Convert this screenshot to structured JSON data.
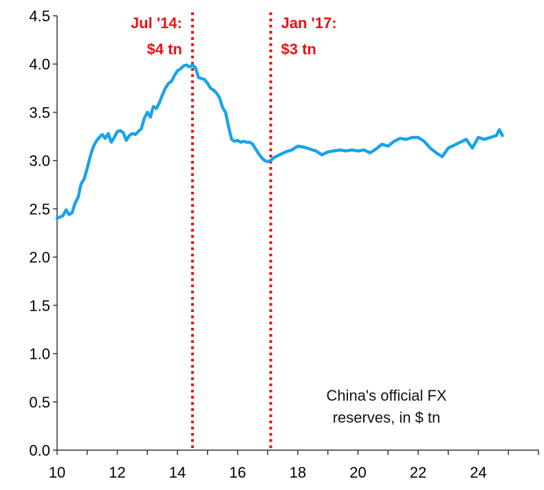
{
  "chart_data": {
    "type": "line",
    "note_lines": [
      "China's official FX",
      "reserves, in $ tn"
    ],
    "x_ticks": [
      "10",
      "12",
      "14",
      "16",
      "18",
      "20",
      "22",
      "24"
    ],
    "y_ticks": [
      "0.0",
      "0.5",
      "1.0",
      "1.5",
      "2.0",
      "2.5",
      "3.0",
      "3.5",
      "4.0",
      "4.5"
    ],
    "xlim": [
      10,
      26
    ],
    "ylim": [
      0,
      4.5
    ],
    "annotations": [
      {
        "x": 14.5,
        "lines": [
          "Jul '14:",
          "$4 tn"
        ]
      },
      {
        "x": 17.1,
        "lines": [
          "Jan '17:",
          "$3 tn"
        ]
      }
    ],
    "series": [
      {
        "color": "#1aa3e8",
        "points": [
          [
            10.0,
            2.4
          ],
          [
            10.2,
            2.43
          ],
          [
            10.3,
            2.49
          ],
          [
            10.4,
            2.44
          ],
          [
            10.5,
            2.46
          ],
          [
            10.6,
            2.56
          ],
          [
            10.7,
            2.62
          ],
          [
            10.8,
            2.76
          ],
          [
            10.9,
            2.81
          ],
          [
            11.0,
            2.92
          ],
          [
            11.1,
            3.04
          ],
          [
            11.2,
            3.14
          ],
          [
            11.3,
            3.2
          ],
          [
            11.4,
            3.24
          ],
          [
            11.5,
            3.27
          ],
          [
            11.6,
            3.23
          ],
          [
            11.7,
            3.28
          ],
          [
            11.8,
            3.19
          ],
          [
            11.9,
            3.24
          ],
          [
            12.0,
            3.3
          ],
          [
            12.1,
            3.31
          ],
          [
            12.2,
            3.29
          ],
          [
            12.3,
            3.21
          ],
          [
            12.4,
            3.26
          ],
          [
            12.5,
            3.28
          ],
          [
            12.6,
            3.27
          ],
          [
            12.7,
            3.3
          ],
          [
            12.8,
            3.33
          ],
          [
            12.9,
            3.44
          ],
          [
            13.0,
            3.5
          ],
          [
            13.1,
            3.45
          ],
          [
            13.2,
            3.56
          ],
          [
            13.3,
            3.54
          ],
          [
            13.4,
            3.6
          ],
          [
            13.5,
            3.68
          ],
          [
            13.6,
            3.75
          ],
          [
            13.7,
            3.8
          ],
          [
            13.8,
            3.82
          ],
          [
            13.9,
            3.88
          ],
          [
            14.0,
            3.93
          ],
          [
            14.1,
            3.95
          ],
          [
            14.2,
            3.98
          ],
          [
            14.3,
            3.99
          ],
          [
            14.4,
            3.97
          ],
          [
            14.5,
            3.99
          ],
          [
            14.6,
            3.96
          ],
          [
            14.7,
            3.86
          ],
          [
            14.8,
            3.85
          ],
          [
            14.9,
            3.84
          ],
          [
            15.0,
            3.8
          ],
          [
            15.1,
            3.75
          ],
          [
            15.2,
            3.73
          ],
          [
            15.3,
            3.7
          ],
          [
            15.4,
            3.65
          ],
          [
            15.5,
            3.55
          ],
          [
            15.6,
            3.5
          ],
          [
            15.7,
            3.35
          ],
          [
            15.8,
            3.22
          ],
          [
            15.9,
            3.2
          ],
          [
            16.0,
            3.21
          ],
          [
            16.1,
            3.19
          ],
          [
            16.2,
            3.2
          ],
          [
            16.3,
            3.19
          ],
          [
            16.4,
            3.19
          ],
          [
            16.5,
            3.17
          ],
          [
            16.6,
            3.12
          ],
          [
            16.7,
            3.07
          ],
          [
            16.8,
            3.03
          ],
          [
            16.9,
            3.0
          ],
          [
            17.0,
            2.99
          ],
          [
            17.1,
            3.0
          ],
          [
            17.2,
            3.03
          ],
          [
            17.4,
            3.06
          ],
          [
            17.6,
            3.09
          ],
          [
            17.8,
            3.11
          ],
          [
            18.0,
            3.15
          ],
          [
            18.2,
            3.14
          ],
          [
            18.4,
            3.12
          ],
          [
            18.6,
            3.1
          ],
          [
            18.8,
            3.06
          ],
          [
            19.0,
            3.09
          ],
          [
            19.2,
            3.1
          ],
          [
            19.4,
            3.11
          ],
          [
            19.6,
            3.1
          ],
          [
            19.8,
            3.11
          ],
          [
            20.0,
            3.1
          ],
          [
            20.2,
            3.11
          ],
          [
            20.4,
            3.08
          ],
          [
            20.6,
            3.12
          ],
          [
            20.8,
            3.17
          ],
          [
            21.0,
            3.15
          ],
          [
            21.2,
            3.2
          ],
          [
            21.4,
            3.23
          ],
          [
            21.6,
            3.22
          ],
          [
            21.8,
            3.24
          ],
          [
            22.0,
            3.24
          ],
          [
            22.2,
            3.2
          ],
          [
            22.4,
            3.13
          ],
          [
            22.6,
            3.08
          ],
          [
            22.8,
            3.04
          ],
          [
            23.0,
            3.13
          ],
          [
            23.2,
            3.16
          ],
          [
            23.4,
            3.19
          ],
          [
            23.6,
            3.22
          ],
          [
            23.8,
            3.13
          ],
          [
            24.0,
            3.24
          ],
          [
            24.2,
            3.22
          ],
          [
            24.4,
            3.24
          ],
          [
            24.6,
            3.26
          ],
          [
            24.7,
            3.32
          ],
          [
            24.8,
            3.26
          ]
        ]
      }
    ]
  }
}
